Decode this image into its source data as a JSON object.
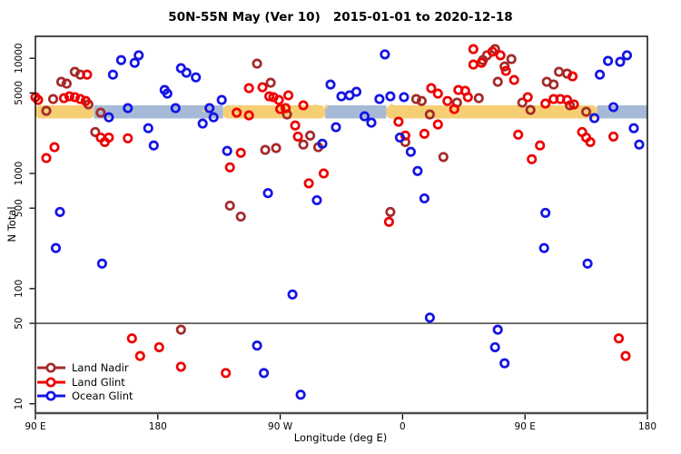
{
  "figure": {
    "title": "50N-55N May (Ver 10)   2015-01-01 to 2020-12-18",
    "background_color": "#ffffff"
  },
  "chart_data": {
    "type": "scatter",
    "title": "50N-55N May (Ver 10)   2015-01-01 to 2020-12-18",
    "xlabel": "Longitude (deg E)",
    "ylabel": "N Total",
    "y_scale": "log10",
    "ylim": [
      8.3,
      15500
    ],
    "xlim_axis_deg": [
      90,
      540
    ],
    "x_axis_note": "x axis wraps longitude over 450 degrees: 90E,180,90W,0,90E,180; axis coordinate is degrees 90..540",
    "grid": "off",
    "x_ticks": [
      {
        "axis_deg": 90,
        "label": "90 E"
      },
      {
        "axis_deg": 180,
        "label": "180"
      },
      {
        "axis_deg": 270,
        "label": "90 W"
      },
      {
        "axis_deg": 360,
        "label": "0"
      },
      {
        "axis_deg": 450,
        "label": "90 E"
      },
      {
        "axis_deg": 540,
        "label": "180"
      }
    ],
    "y_ticks": [
      {
        "value": 10000,
        "label": "10000"
      },
      {
        "value": 5000,
        "label": "5000"
      },
      {
        "value": 1000,
        "label": "1000"
      },
      {
        "value": 500,
        "label": "500"
      },
      {
        "value": 100,
        "label": "100"
      },
      {
        "value": 50,
        "label": "50"
      },
      {
        "value": 10,
        "label": "10"
      }
    ],
    "hline": {
      "value": 50,
      "color": "#000000"
    },
    "band": {
      "description": "dense band of small points near N=3000-3900 colored by surface type",
      "value_range": [
        3000,
        3900
      ],
      "land_color": "#F6CE73",
      "ocean_color": "#A6BAD8",
      "segments": [
        {
          "type": "land",
          "from_deg": 90,
          "to_deg": 133
        },
        {
          "type": "ocean",
          "from_deg": 133,
          "to_deg": 228
        },
        {
          "type": "land",
          "from_deg": 228,
          "to_deg": 303
        },
        {
          "type": "ocean",
          "from_deg": 303,
          "to_deg": 348
        },
        {
          "type": "land",
          "from_deg": 348,
          "to_deg": 503
        },
        {
          "type": "ocean",
          "from_deg": 503,
          "to_deg": 540
        }
      ],
      "speckles_land_in_ocean": [
        [
          296,
          3850
        ],
        [
          299,
          3150
        ],
        [
          304,
          3820
        ],
        [
          214,
          3500
        ],
        [
          352,
          3880
        ],
        [
          356,
          3120
        ],
        [
          360,
          3800
        ],
        [
          512,
          3840
        ]
      ]
    },
    "axis_colors": {
      "box": "#000000",
      "bottom_axis": "#4d4d4d",
      "text": "#000000"
    },
    "legend": {
      "position": "bottom-left",
      "marker": "open-circle-on-line"
    },
    "series": [
      {
        "name": "Land Nadir",
        "color": "#A52A2A",
        "marker": "open-circle",
        "points": [
          [
            119,
            7620
          ],
          [
            123,
            7210
          ],
          [
            109,
            6240
          ],
          [
            113,
            6020
          ],
          [
            103,
            4420
          ],
          [
            129,
            3970
          ],
          [
            98,
            3490
          ],
          [
            138,
            3370
          ],
          [
            134,
            2290
          ],
          [
            253,
            8970
          ],
          [
            263,
            6130
          ],
          [
            275,
            3250
          ],
          [
            259,
            1600
          ],
          [
            267,
            1660
          ],
          [
            287,
            1780
          ],
          [
            292,
            2130
          ],
          [
            298,
            1690
          ],
          [
            233,
            525
          ],
          [
            241,
            422
          ],
          [
            419,
            9640
          ],
          [
            422,
            10600
          ],
          [
            428,
            12000
          ],
          [
            430,
            6240
          ],
          [
            374,
            4260
          ],
          [
            370,
            4420
          ],
          [
            400,
            4120
          ],
          [
            416,
            4500
          ],
          [
            380,
            3250
          ],
          [
            390,
            1390
          ],
          [
            351,
            463
          ],
          [
            362,
            1870
          ],
          [
            440,
            9820
          ],
          [
            435,
            8490
          ],
          [
            475,
            7620
          ],
          [
            481,
            7350
          ],
          [
            466,
            6240
          ],
          [
            471,
            5910
          ],
          [
            448,
            4120
          ],
          [
            454,
            3560
          ],
          [
            483,
            3900
          ],
          [
            495,
            3430
          ],
          [
            197,
            44
          ]
        ]
      },
      {
        "name": "Land Glint",
        "color": "#EE0000",
        "marker": "open-circle",
        "points": [
          [
            90,
            4590
          ],
          [
            92,
            4340
          ],
          [
            128,
            7210
          ],
          [
            111,
            4500
          ],
          [
            115,
            4670
          ],
          [
            119,
            4590
          ],
          [
            123,
            4420
          ],
          [
            127,
            4260
          ],
          [
            138,
            2050
          ],
          [
            141,
            1870
          ],
          [
            144,
            2050
          ],
          [
            158,
            2020
          ],
          [
            104,
            1690
          ],
          [
            98,
            1360
          ],
          [
            247,
            5500
          ],
          [
            257,
            5600
          ],
          [
            262,
            4670
          ],
          [
            265,
            4590
          ],
          [
            269,
            4340
          ],
          [
            276,
            4760
          ],
          [
            270,
            3620
          ],
          [
            274,
            3690
          ],
          [
            287,
            3900
          ],
          [
            238,
            3370
          ],
          [
            247,
            3190
          ],
          [
            281,
            2610
          ],
          [
            283,
            2090
          ],
          [
            241,
            1510
          ],
          [
            233,
            1130
          ],
          [
            302,
            1000
          ],
          [
            291,
            820
          ],
          [
            412,
            12000
          ],
          [
            426,
            11400
          ],
          [
            412,
            8810
          ],
          [
            418,
            9130
          ],
          [
            381,
            5500
          ],
          [
            386,
            4930
          ],
          [
            401,
            5300
          ],
          [
            406,
            5210
          ],
          [
            408,
            4590
          ],
          [
            393,
            4260
          ],
          [
            398,
            3620
          ],
          [
            357,
            2810
          ],
          [
            386,
            2660
          ],
          [
            362,
            2130
          ],
          [
            376,
            2210
          ],
          [
            350,
            380
          ],
          [
            432,
            10600
          ],
          [
            436,
            7760
          ],
          [
            442,
            6470
          ],
          [
            452,
            4590
          ],
          [
            465,
            4040
          ],
          [
            471,
            4420
          ],
          [
            476,
            4420
          ],
          [
            481,
            4340
          ],
          [
            485,
            6960
          ],
          [
            486,
            3970
          ],
          [
            445,
            2170
          ],
          [
            461,
            1750
          ],
          [
            455,
            1330
          ],
          [
            492,
            2290
          ],
          [
            495,
            2050
          ],
          [
            498,
            1870
          ],
          [
            515,
            2090
          ],
          [
            161,
            37
          ],
          [
            181,
            31
          ],
          [
            167,
            26
          ],
          [
            197,
            21
          ],
          [
            230,
            18.5
          ],
          [
            519,
            37
          ],
          [
            524,
            26
          ]
        ]
      },
      {
        "name": "Ocean Glint",
        "color": "#1414E6",
        "marker": "open-circle",
        "points": [
          [
            153,
            9640
          ],
          [
            166,
            10600
          ],
          [
            163,
            9130
          ],
          [
            147,
            7210
          ],
          [
            197,
            8190
          ],
          [
            201,
            7480
          ],
          [
            185,
            5300
          ],
          [
            187,
            4930
          ],
          [
            158,
            3690
          ],
          [
            193,
            3690
          ],
          [
            144,
            3070
          ],
          [
            173,
            2470
          ],
          [
            177,
            1750
          ],
          [
            108,
            463
          ],
          [
            208,
            6830
          ],
          [
            227,
            4340
          ],
          [
            218,
            3690
          ],
          [
            221,
            3070
          ],
          [
            213,
            2710
          ],
          [
            307,
            5910
          ],
          [
            315,
            4670
          ],
          [
            311,
            2520
          ],
          [
            301,
            1810
          ],
          [
            231,
            1570
          ],
          [
            261,
            675
          ],
          [
            297,
            585
          ],
          [
            347,
            10800
          ],
          [
            321,
            4760
          ],
          [
            326,
            5110
          ],
          [
            343,
            4420
          ],
          [
            351,
            4670
          ],
          [
            361,
            4590
          ],
          [
            332,
            3130
          ],
          [
            337,
            2760
          ],
          [
            358,
            2050
          ],
          [
            366,
            1540
          ],
          [
            371,
            1050
          ],
          [
            376,
            607
          ],
          [
            525,
            10600
          ],
          [
            520,
            9300
          ],
          [
            511,
            9470
          ],
          [
            505,
            7210
          ],
          [
            515,
            3760
          ],
          [
            501,
            3020
          ],
          [
            530,
            2470
          ],
          [
            534,
            1780
          ],
          [
            465,
            455
          ],
          [
            105,
            225
          ],
          [
            139,
            165
          ],
          [
            279,
            89
          ],
          [
            253,
            32
          ],
          [
            258,
            18.5
          ],
          [
            285,
            12
          ],
          [
            380,
            56
          ],
          [
            430,
            44
          ],
          [
            428,
            31
          ],
          [
            435,
            22.5
          ],
          [
            464,
            225
          ],
          [
            496,
            165
          ]
        ]
      }
    ]
  }
}
